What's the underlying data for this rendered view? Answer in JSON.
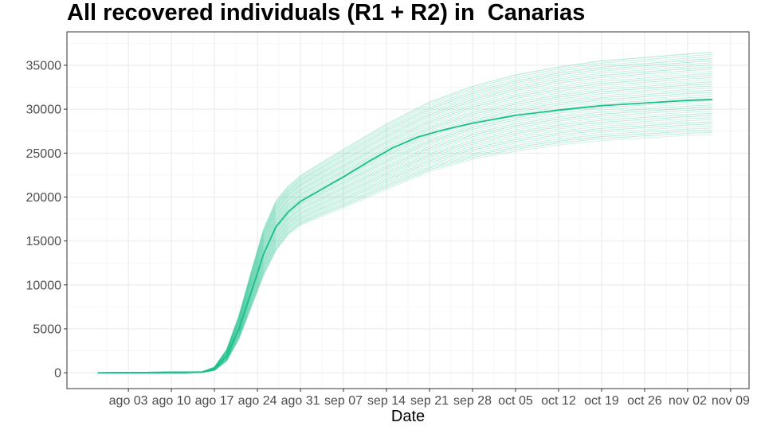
{
  "chart_data": {
    "type": "line",
    "title": "All recovered individuals (R1 + R2) in  Canarias",
    "xlabel": "Date",
    "ylabel": "",
    "x_tick_labels": [
      "ago 03",
      "ago 10",
      "ago 17",
      "ago 24",
      "ago 31",
      "sep 07",
      "sep 14",
      "sep 21",
      "sep 28",
      "oct 05",
      "oct 12",
      "oct 19",
      "oct 26",
      "nov 02",
      "nov 09"
    ],
    "x_tick_dates": [
      "2020-08-03",
      "2020-08-10",
      "2020-08-17",
      "2020-08-24",
      "2020-08-31",
      "2020-09-07",
      "2020-09-14",
      "2020-09-21",
      "2020-09-28",
      "2020-10-05",
      "2020-10-12",
      "2020-10-19",
      "2020-10-26",
      "2020-11-02",
      "2020-11-09"
    ],
    "xlim": [
      "2020-07-24",
      "2020-11-12"
    ],
    "ylim": [
      -1800,
      38800
    ],
    "y_ticks": [
      0,
      5000,
      10000,
      15000,
      20000,
      25000,
      30000,
      35000
    ],
    "grid": true,
    "legend": "none",
    "main_color": "#1ABF8A",
    "ensemble_color": "#1ABF8A",
    "series": [
      {
        "role": "median",
        "x": [
          "2020-07-29",
          "2020-08-05",
          "2020-08-12",
          "2020-08-15",
          "2020-08-17",
          "2020-08-19",
          "2020-08-21",
          "2020-08-23",
          "2020-08-25",
          "2020-08-27",
          "2020-08-29",
          "2020-08-31",
          "2020-09-03",
          "2020-09-07",
          "2020-09-11",
          "2020-09-15",
          "2020-09-19",
          "2020-09-23",
          "2020-09-28",
          "2020-10-05",
          "2020-10-12",
          "2020-10-19",
          "2020-10-26",
          "2020-11-02",
          "2020-11-06"
        ],
        "values": [
          0,
          0,
          0,
          80,
          400,
          1900,
          5000,
          9200,
          13500,
          16600,
          18300,
          19500,
          20700,
          22300,
          24000,
          25600,
          26800,
          27600,
          28400,
          29300,
          29900,
          30400,
          30700,
          31000,
          31100
        ]
      },
      {
        "role": "ensemble",
        "x": [
          "2020-07-29",
          "2020-08-15",
          "2020-08-17",
          "2020-08-19",
          "2020-08-21",
          "2020-08-23",
          "2020-08-25",
          "2020-08-27",
          "2020-08-29",
          "2020-08-31",
          "2020-09-03",
          "2020-09-07",
          "2020-09-14",
          "2020-09-21",
          "2020-09-28",
          "2020-10-05",
          "2020-10-12",
          "2020-10-19",
          "2020-10-26",
          "2020-11-02",
          "2020-11-06"
        ],
        "values_min": [
          0,
          40,
          250,
          1300,
          3800,
          7400,
          11000,
          13800,
          15600,
          16700,
          17600,
          18700,
          20800,
          22800,
          24200,
          25100,
          25800,
          26300,
          26600,
          26900,
          27000
        ],
        "values_max": [
          0,
          120,
          650,
          2700,
          6600,
          11600,
          16400,
          19600,
          21300,
          22500,
          23800,
          25500,
          28400,
          30900,
          32700,
          34000,
          34900,
          35600,
          36000,
          36400,
          36600
        ]
      }
    ]
  }
}
